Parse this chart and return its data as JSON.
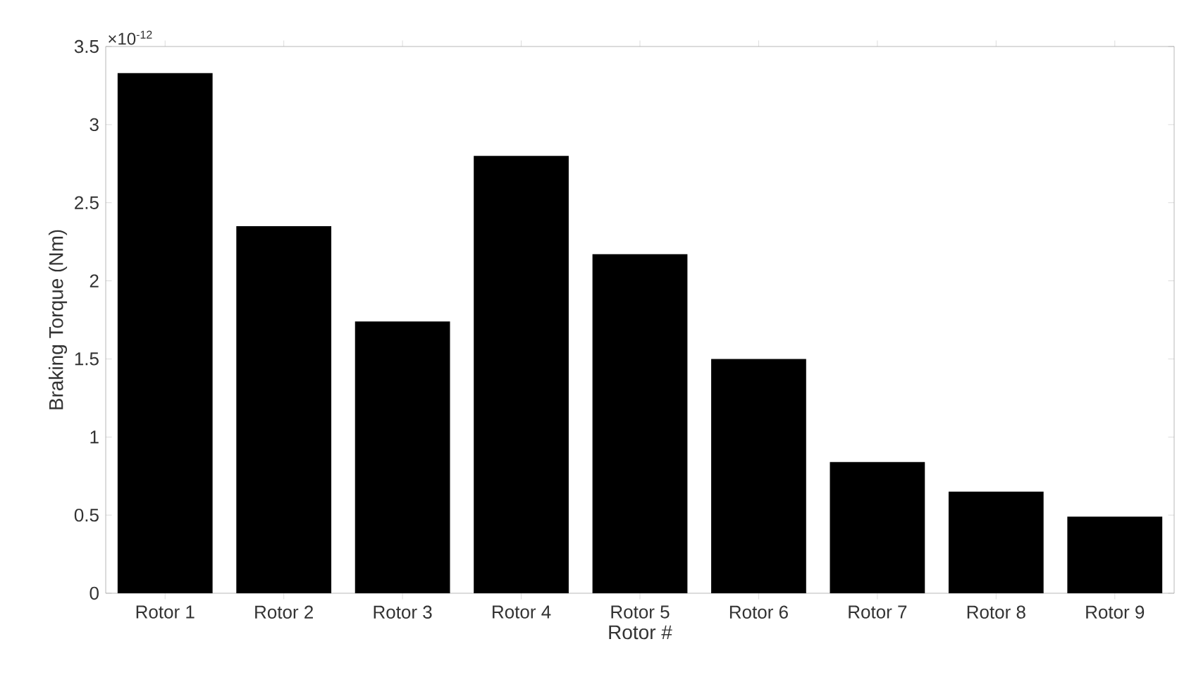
{
  "chart_data": {
    "type": "bar",
    "xlabel": "Rotor #",
    "ylabel": "Braking Torque (Nm)",
    "annotations": [
      "×10$^{-12}$"
    ],
    "categories": [
      "Rotor 1",
      "Rotor 2",
      "Rotor 3",
      "Rotor 4",
      "Rotor 5",
      "Rotor 6",
      "Rotor 7",
      "Rotor 8",
      "Rotor 9"
    ],
    "values": [
      3.33,
      2.35,
      1.74,
      2.8,
      2.17,
      1.5,
      0.84,
      0.65,
      0.49
    ],
    "color": "#000000",
    "ylim": [
      0,
      3.5
    ],
    "yticks": [
      0,
      0.5,
      1,
      1.5,
      2,
      2.5,
      3,
      3.5
    ]
  }
}
